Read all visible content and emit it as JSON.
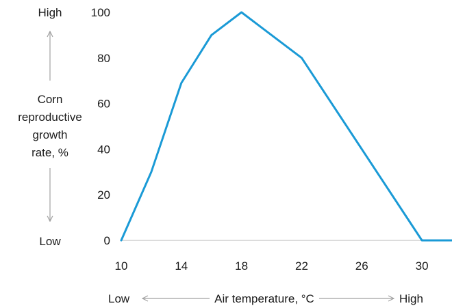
{
  "chart_data": {
    "type": "line",
    "xlabel": "Air temperature, °C",
    "ylabel_lines": [
      "Corn",
      "reproductive",
      "growth",
      "rate, %"
    ],
    "x_low_label": "Low",
    "x_high_label": "High",
    "y_low_label": "Low",
    "y_high_label": "High",
    "xlim": [
      10,
      32
    ],
    "ylim": [
      0,
      100
    ],
    "x_ticks": [
      10,
      14,
      18,
      22,
      26,
      30
    ],
    "y_ticks": [
      0,
      20,
      40,
      60,
      80,
      100
    ],
    "grid": false,
    "line_color": "#1a9ad6",
    "axis_color": "#c8c8c8",
    "arrow_color": "#a0a0a0",
    "series": [
      {
        "x": [
          10,
          12,
          14,
          16,
          18,
          22,
          30,
          32
        ],
        "y": [
          0,
          30,
          69,
          90,
          100,
          80,
          0,
          0
        ]
      }
    ]
  }
}
